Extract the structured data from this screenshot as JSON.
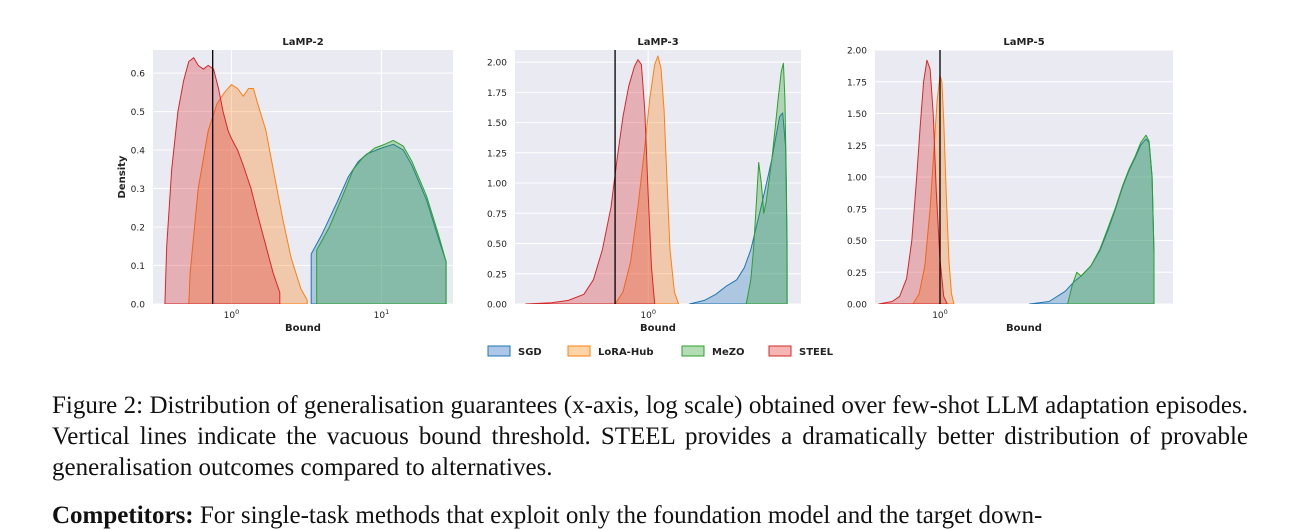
{
  "chart_data": {
    "type": "area",
    "description_series": [
      "SGD",
      "LoRA-Hub",
      "MeZO",
      "STEEL"
    ],
    "legend": {
      "placement": "bottom-center",
      "entries": [
        {
          "label": "SGD",
          "fill": "#aec7e8",
          "stroke": "#1f77b4"
        },
        {
          "label": "LoRA-Hub",
          "fill": "#ffd4a8",
          "stroke": "#ff7f0e"
        },
        {
          "label": "MeZO",
          "fill": "#b5ddb5",
          "stroke": "#2ca02c"
        },
        {
          "label": "STEEL",
          "fill": "#f5b5b5",
          "stroke": "#d62728"
        }
      ]
    },
    "colors": {
      "SGD": "#1f77b4",
      "LoRA-Hub": "#ff7f0e",
      "MeZO": "#2ca02c",
      "STEEL": "#d62728",
      "background": "#eaeaf2",
      "grid": "#ffffff",
      "threshold": "#000000"
    },
    "x_scale": "log",
    "grid": true,
    "panels": [
      {
        "title": "LaMP-2",
        "xlabel": "Bound",
        "ylabel": "Density",
        "xlim": [
          0.3,
          30
        ],
        "ylim": [
          0,
          0.66
        ],
        "yticks": [
          "0.0",
          "0.1",
          "0.2",
          "0.3",
          "0.4",
          "0.5",
          "0.6"
        ],
        "ytick_values": [
          0,
          0.1,
          0.2,
          0.3,
          0.4,
          0.5,
          0.6
        ],
        "xticks": [
          {
            "value": 1,
            "base": "10",
            "exp": "0"
          },
          {
            "value": 10,
            "base": "10",
            "exp": "1"
          }
        ],
        "threshold_x": 0.75,
        "series": [
          {
            "name": "STEEL",
            "x": [
              0.36,
              0.37,
              0.4,
              0.44,
              0.48,
              0.52,
              0.56,
              0.6,
              0.65,
              0.7,
              0.76,
              0.82,
              0.88,
              0.95,
              1.0,
              1.1,
              1.2,
              1.35,
              1.5,
              1.7,
              1.9,
              2.1
            ],
            "y": [
              0.0,
              0.15,
              0.35,
              0.5,
              0.58,
              0.63,
              0.64,
              0.62,
              0.61,
              0.62,
              0.61,
              0.56,
              0.5,
              0.45,
              0.43,
              0.4,
              0.36,
              0.3,
              0.23,
              0.15,
              0.08,
              0.03
            ]
          },
          {
            "name": "LoRA-Hub",
            "x": [
              0.52,
              0.53,
              0.6,
              0.7,
              0.8,
              0.9,
              1.0,
              1.1,
              1.2,
              1.3,
              1.4,
              1.5,
              1.7,
              1.9,
              2.2,
              2.5,
              2.9,
              3.2
            ],
            "y": [
              0.0,
              0.08,
              0.3,
              0.45,
              0.52,
              0.55,
              0.57,
              0.56,
              0.54,
              0.56,
              0.56,
              0.52,
              0.45,
              0.35,
              0.22,
              0.12,
              0.04,
              0.01
            ]
          },
          {
            "name": "SGD",
            "x": [
              3.4,
              3.4,
              4.0,
              5.0,
              6.0,
              7.0,
              8.0,
              10.0,
              12.0,
              14.0,
              16.0,
              20.0,
              24.0,
              27.0,
              27.0
            ],
            "y": [
              0.0,
              0.13,
              0.18,
              0.26,
              0.33,
              0.37,
              0.39,
              0.405,
              0.415,
              0.4,
              0.36,
              0.27,
              0.17,
              0.11,
              0.0
            ]
          },
          {
            "name": "MeZO",
            "x": [
              3.7,
              3.7,
              4.5,
              5.5,
              6.5,
              7.5,
              9.0,
              10.5,
              12.0,
              14.0,
              16.0,
              20.0,
              24.0,
              27.0,
              27.0
            ],
            "y": [
              0.0,
              0.14,
              0.2,
              0.28,
              0.35,
              0.38,
              0.405,
              0.415,
              0.425,
              0.41,
              0.37,
              0.28,
              0.18,
              0.11,
              0.0
            ]
          }
        ]
      },
      {
        "title": "LaMP-3",
        "xlabel": "Bound",
        "ylabel": "",
        "xlim": [
          0.45,
          2.5
        ],
        "ylim": [
          0,
          2.1
        ],
        "yticks": [
          "0.00",
          "0.25",
          "0.50",
          "0.75",
          "1.00",
          "1.25",
          "1.50",
          "1.75",
          "2.00"
        ],
        "ytick_values": [
          0,
          0.25,
          0.5,
          0.75,
          1.0,
          1.25,
          1.5,
          1.75,
          2.0
        ],
        "xticks": [
          {
            "value": 1,
            "base": "10",
            "exp": "0"
          }
        ],
        "threshold_x": 0.82,
        "series": [
          {
            "name": "STEEL",
            "x": [
              0.48,
              0.56,
              0.62,
              0.68,
              0.72,
              0.76,
              0.8,
              0.83,
              0.86,
              0.89,
              0.92,
              0.94,
              0.96,
              0.98,
              1.0,
              1.02,
              1.04
            ],
            "y": [
              0.0,
              0.01,
              0.03,
              0.08,
              0.2,
              0.45,
              0.8,
              1.2,
              1.55,
              1.8,
              1.96,
              2.02,
              1.98,
              1.6,
              0.9,
              0.3,
              0.0
            ]
          },
          {
            "name": "LoRA-Hub",
            "x": [
              0.82,
              0.86,
              0.9,
              0.94,
              0.98,
              1.01,
              1.04,
              1.06,
              1.08,
              1.1,
              1.12,
              1.14,
              1.17,
              1.2
            ],
            "y": [
              0.0,
              0.1,
              0.35,
              0.8,
              1.3,
              1.7,
              1.98,
              2.05,
              1.95,
              1.6,
              1.0,
              0.45,
              0.1,
              0.0
            ]
          },
          {
            "name": "SGD",
            "x": [
              1.28,
              1.4,
              1.5,
              1.6,
              1.7,
              1.78,
              1.85,
              1.9,
              1.95,
              2.0,
              2.05,
              2.1,
              2.15,
              2.2,
              2.24,
              2.28,
              2.3,
              2.3
            ],
            "y": [
              0.0,
              0.03,
              0.08,
              0.15,
              0.2,
              0.3,
              0.45,
              0.6,
              0.75,
              0.9,
              1.05,
              1.2,
              1.38,
              1.55,
              1.58,
              1.3,
              0.5,
              0.0
            ]
          },
          {
            "name": "MeZO",
            "x": [
              1.8,
              1.85,
              1.88,
              1.91,
              1.94,
              1.97,
              2.0,
              2.03,
              2.06,
              2.1,
              2.14,
              2.18,
              2.22,
              2.25,
              2.27,
              2.29,
              2.3,
              2.3
            ],
            "y": [
              0.0,
              0.2,
              0.45,
              0.8,
              1.17,
              1.0,
              0.75,
              0.85,
              1.0,
              1.2,
              1.45,
              1.7,
              1.92,
              1.99,
              1.7,
              1.0,
              0.3,
              0.0
            ]
          }
        ]
      },
      {
        "title": "LaMP-5",
        "xlabel": "Bound",
        "ylabel": "",
        "xlim": [
          0.5,
          12
        ],
        "ylim": [
          0,
          2.0
        ],
        "yticks": [
          "0.00",
          "0.25",
          "0.50",
          "0.75",
          "1.00",
          "1.25",
          "1.50",
          "1.75",
          "2.00"
        ],
        "ytick_values": [
          0,
          0.25,
          0.5,
          0.75,
          1.0,
          1.25,
          1.5,
          1.75,
          2.0
        ],
        "xticks": [
          {
            "value": 1,
            "base": "10",
            "exp": "0"
          }
        ],
        "threshold_x": 1.0,
        "series": [
          {
            "name": "STEEL",
            "x": [
              0.52,
              0.6,
              0.65,
              0.7,
              0.74,
              0.78,
              0.81,
              0.84,
              0.87,
              0.9,
              0.93,
              0.96,
              1.0,
              1.04,
              1.08
            ],
            "y": [
              0.0,
              0.02,
              0.06,
              0.2,
              0.5,
              1.0,
              1.4,
              1.75,
              1.92,
              1.85,
              1.5,
              0.9,
              0.35,
              0.06,
              0.0
            ]
          },
          {
            "name": "LoRA-Hub",
            "x": [
              0.75,
              0.8,
              0.85,
              0.9,
              0.94,
              0.97,
              1.0,
              1.02,
              1.04,
              1.07,
              1.1,
              1.13,
              1.16
            ],
            "y": [
              0.0,
              0.08,
              0.3,
              0.75,
              1.25,
              1.6,
              1.8,
              1.75,
              1.45,
              0.85,
              0.35,
              0.08,
              0.0
            ]
          },
          {
            "name": "SGD",
            "x": [
              2.6,
              3.2,
              3.8,
              4.2,
              4.5,
              5.0,
              5.5,
              6.0,
              6.5,
              7.0,
              7.5,
              8.0,
              8.5,
              9.0,
              9.3,
              9.6,
              9.8,
              9.8
            ],
            "y": [
              0.0,
              0.02,
              0.1,
              0.18,
              0.22,
              0.3,
              0.42,
              0.58,
              0.75,
              0.92,
              1.05,
              1.15,
              1.25,
              1.3,
              1.27,
              1.0,
              0.4,
              0.0
            ]
          },
          {
            "name": "MeZO",
            "x": [
              3.9,
              4.1,
              4.3,
              4.5,
              5.0,
              5.5,
              6.0,
              6.5,
              7.0,
              7.5,
              8.0,
              8.5,
              9.0,
              9.3,
              9.6,
              9.8,
              9.8
            ],
            "y": [
              0.0,
              0.15,
              0.25,
              0.22,
              0.3,
              0.43,
              0.6,
              0.76,
              0.93,
              1.06,
              1.16,
              1.27,
              1.33,
              1.28,
              1.0,
              0.4,
              0.0
            ]
          }
        ]
      }
    ]
  },
  "caption": {
    "text": "Figure 2: Distribution of generalisation guarantees (x-axis, log scale) obtained over few-shot LLM adaptation episodes. Vertical lines indicate the vacuous bound threshold. STEEL provides a dramatically better distribution of provable generalisation outcomes compared to alternatives."
  },
  "next_paragraph": {
    "label": "Competitors:",
    "text": "For single-task methods that exploit only the foundation model and the target down-"
  }
}
